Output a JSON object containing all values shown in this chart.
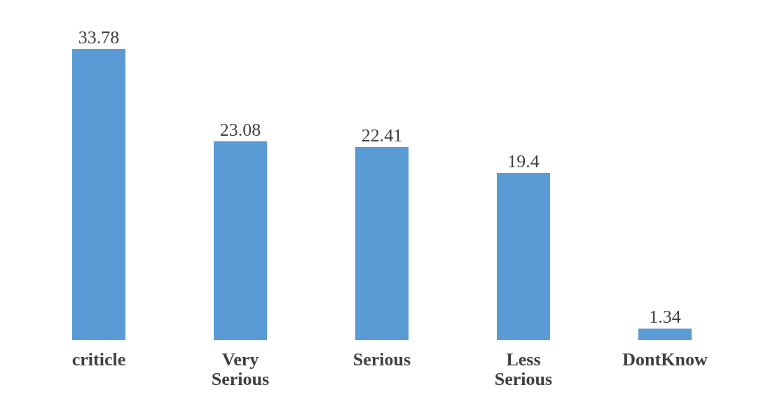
{
  "chart_data": {
    "type": "bar",
    "categories": [
      "criticle",
      "Very Serious",
      "Serious",
      "Less Serious",
      "DontKnow"
    ],
    "values": [
      33.78,
      23.08,
      22.41,
      19.4,
      1.34
    ],
    "color": "#5b9bd5",
    "data_labels": true
  }
}
